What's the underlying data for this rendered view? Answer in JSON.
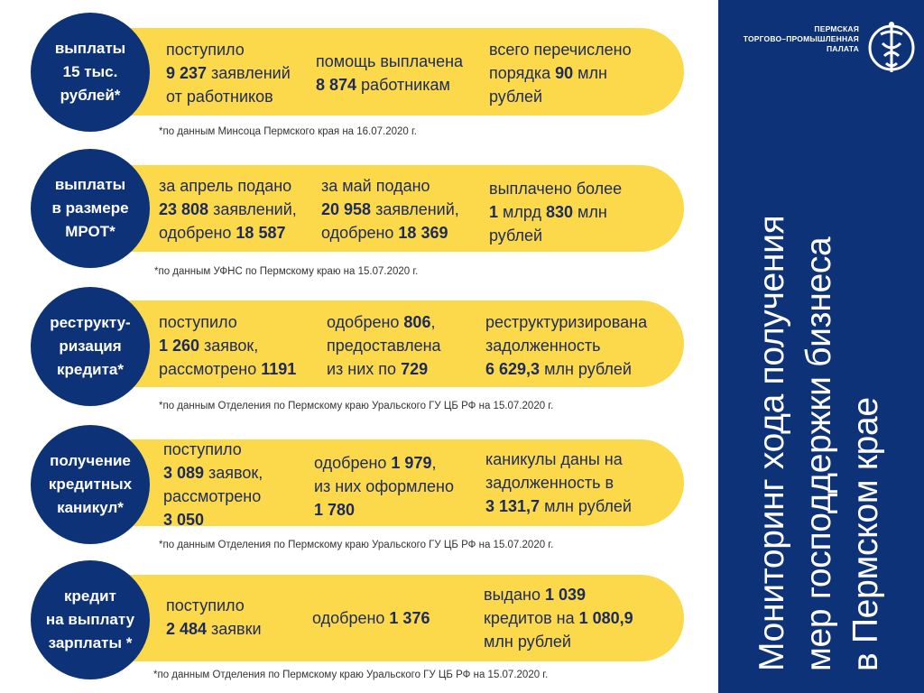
{
  "org": {
    "lines": [
      "ПЕРМСКАЯ",
      "ТОРГОВО–ПРОМЫШЛЕННАЯ",
      "ПАЛАТА"
    ],
    "emblem_icon": "chamber-of-commerce-emblem-icon"
  },
  "title": {
    "lines": [
      "Мониторинг хода получения",
      "мер господдержки бизнеса",
      "в Пермском крае"
    ]
  },
  "colors": {
    "navy": "#0d3278",
    "yellow": "#fcd94a",
    "text": "#1d2a5c"
  },
  "rows": [
    {
      "circle_text": "выплаты\n15 тыс.\nрублей*",
      "columns": [
        {
          "parts": [
            [
              "поступило\n",
              false
            ],
            [
              "9 237",
              true
            ],
            [
              " заявлений\nот работников",
              false
            ]
          ]
        },
        {
          "parts": [
            [
              "помощь выплачена\n",
              false
            ],
            [
              "8 874",
              true
            ],
            [
              " работникам",
              false
            ]
          ]
        },
        {
          "parts": [
            [
              "всего перечислено\n порядка ",
              false
            ],
            [
              "90",
              true
            ],
            [
              " млн\nрублей",
              false
            ]
          ]
        }
      ],
      "note": "*по данным Минсоца Пермского края на 16.07.2020 г."
    },
    {
      "circle_text": "выплаты\nв размере\nМРОТ*",
      "columns": [
        {
          "parts": [
            [
              "за апрель подано\n",
              false
            ],
            [
              "23 808",
              true
            ],
            [
              " заявлений,\nодобрено ",
              false
            ],
            [
              "18 587",
              true
            ]
          ]
        },
        {
          "parts": [
            [
              "за май подано\n",
              false
            ],
            [
              "20 958",
              true
            ],
            [
              " заявлений,\nодобрено ",
              false
            ],
            [
              "18 369",
              true
            ]
          ]
        },
        {
          "parts": [
            [
              "выплачено более\n",
              false
            ],
            [
              "1",
              true
            ],
            [
              " млрд ",
              false
            ],
            [
              "830",
              true
            ],
            [
              " млн\nрублей",
              false
            ]
          ]
        }
      ],
      "note": "*по данным УФНС по Пермскому краю на 15.07.2020 г."
    },
    {
      "circle_text": "реструкту-\nризация\nкредита*",
      "columns": [
        {
          "parts": [
            [
              "поступило\n",
              false
            ],
            [
              "1 260",
              true
            ],
            [
              " заявок,\nрассмотрено ",
              false
            ],
            [
              "1191",
              true
            ]
          ]
        },
        {
          "parts": [
            [
              "одобрено ",
              false
            ],
            [
              "806",
              true
            ],
            [
              ",\nпредоставлена\nиз них по ",
              false
            ],
            [
              "729",
              true
            ]
          ]
        },
        {
          "parts": [
            [
              "реструктуризирована\nзадолженность\n",
              false
            ],
            [
              "6 629,3",
              true
            ],
            [
              " млн рублей",
              false
            ]
          ]
        }
      ],
      "note": "*по данным Отделения по Пермскому краю Уральского ГУ ЦБ РФ на 15.07.2020 г."
    },
    {
      "circle_text": "получение\nкредитных\nканикул*",
      "columns": [
        {
          "parts": [
            [
              "поступило\n",
              false
            ],
            [
              "3 089",
              true
            ],
            [
              " заявок,\nрассмотрено\n",
              false
            ],
            [
              "3 050",
              true
            ]
          ]
        },
        {
          "parts": [
            [
              "одобрено ",
              false
            ],
            [
              "1 979",
              true
            ],
            [
              ",\nиз них оформлено\n",
              false
            ],
            [
              "1 780",
              true
            ]
          ]
        },
        {
          "parts": [
            [
              "каникулы даны на\nзадолженность в\n",
              false
            ],
            [
              "3 131,7",
              true
            ],
            [
              " млн рублей",
              false
            ]
          ]
        }
      ],
      "note": "*по данным Отделения по Пермскому краю Уральского ГУ ЦБ РФ на 15.07.2020 г."
    },
    {
      "circle_text": "кредит\nна выплату\nзарплаты *",
      "columns": [
        {
          "parts": [
            [
              "поступило\n",
              false
            ],
            [
              "2 484",
              true
            ],
            [
              " заявки",
              false
            ]
          ]
        },
        {
          "parts": [
            [
              "одобрено ",
              false
            ],
            [
              "1 376",
              true
            ]
          ]
        },
        {
          "parts": [
            [
              "выдано ",
              false
            ],
            [
              "1 039",
              true
            ],
            [
              "\nкредитов на ",
              false
            ],
            [
              "1 080,9",
              true
            ],
            [
              "\nмлн рублей",
              false
            ]
          ]
        }
      ],
      "note": "*по данным Отделения по Пермскому краю Уральского ГУ ЦБ РФ на 15.07.2020 г."
    }
  ]
}
